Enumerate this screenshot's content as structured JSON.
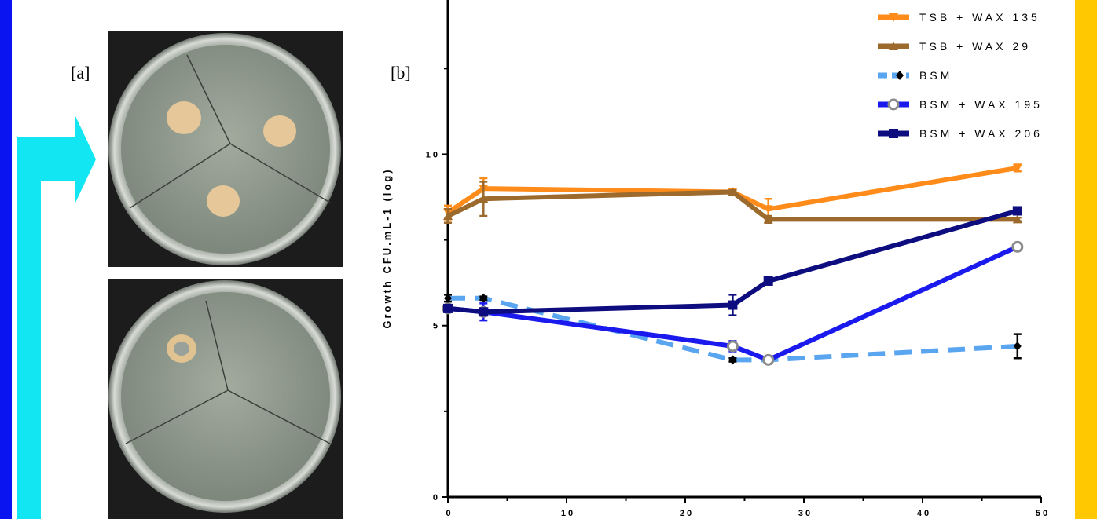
{
  "panel_labels": {
    "a": "[a]",
    "b": "[b]"
  },
  "chart_data": {
    "type": "line",
    "y_label": "Growth CFU.mL-1 (log)",
    "x": [
      0,
      3,
      24,
      27,
      48
    ],
    "xlim": [
      0,
      50
    ],
    "xticks": [
      0,
      10,
      20,
      30,
      40,
      50
    ],
    "xminorticks": [
      5,
      15,
      25,
      35,
      45
    ],
    "ylim": [
      0,
      14.5
    ],
    "yticks": [
      0,
      5,
      10
    ],
    "yminorticks": [
      2.5,
      7.5,
      12.5
    ],
    "series": [
      {
        "name": "TSB + WAX 135",
        "color": "#ff8c1a",
        "marker": "triangle-down",
        "marker_color": "#ff8c1a",
        "dashed": false,
        "values": [
          8.3,
          9.0,
          8.9,
          8.4,
          9.6
        ],
        "errors": [
          0.2,
          0.3,
          0.05,
          0.3,
          0.1
        ]
      },
      {
        "name": "TSB + WAX 29",
        "color": "#9b6a2c",
        "marker": "triangle",
        "marker_color": "#9b6a2c",
        "dashed": false,
        "values": [
          8.2,
          8.7,
          8.9,
          8.1,
          8.1
        ],
        "errors": [
          0.2,
          0.5,
          0.05,
          0.1,
          0.05
        ]
      },
      {
        "name": "BSM",
        "color": "#5aa5f0",
        "marker": "diamond",
        "marker_color": "#000000",
        "dashed": true,
        "values": [
          5.8,
          5.8,
          4.0,
          4.0,
          4.4
        ],
        "errors": [
          0.1,
          0.05,
          0.05,
          0.05,
          0.35
        ]
      },
      {
        "name": "BSM + WAX 195",
        "color": "#1a1aee",
        "marker": "circle",
        "marker_color": "#8c8c8c",
        "dashed": false,
        "values": [
          5.5,
          5.4,
          4.4,
          4.0,
          7.3
        ],
        "errors": [
          0.1,
          0.25,
          0.15,
          0.05,
          0.05
        ]
      },
      {
        "name": "BSM + WAX 206",
        "color": "#0d0d80",
        "marker": "square",
        "marker_color": "#0d0d80",
        "dashed": false,
        "values": [
          5.5,
          5.4,
          5.6,
          6.3,
          8.35
        ],
        "errors": [
          0.1,
          0.1,
          0.3,
          0.05,
          0.05
        ]
      }
    ]
  }
}
